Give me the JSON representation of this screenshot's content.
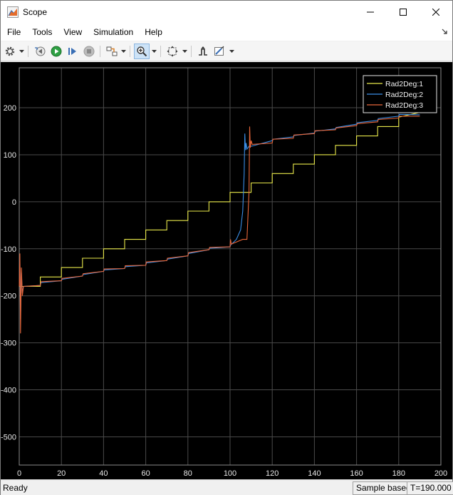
{
  "window": {
    "title": "Scope"
  },
  "menu": [
    "File",
    "Tools",
    "View",
    "Simulation",
    "Help"
  ],
  "toolbar": [
    {
      "name": "settings-gear-icon"
    },
    {
      "name": "step-back-icon"
    },
    {
      "name": "run-icon"
    },
    {
      "name": "step-forward-icon"
    },
    {
      "name": "stop-icon"
    },
    {
      "name": "highlight-block-icon"
    },
    {
      "name": "zoom-in-icon"
    },
    {
      "name": "zoom-to-fit-icon"
    },
    {
      "name": "triggers-icon"
    },
    {
      "name": "cursor-measure-icon"
    }
  ],
  "status": {
    "ready": "Ready",
    "mode": "Sample based",
    "time": "T=190.000"
  },
  "chart_data": {
    "type": "line",
    "xlim": [
      0,
      200
    ],
    "ylim": [
      -560,
      285
    ],
    "x_ticks": [
      0,
      20,
      40,
      60,
      80,
      100,
      120,
      140,
      160,
      180,
      200
    ],
    "y_ticks": [
      -500,
      -400,
      -300,
      -200,
      -100,
      0,
      100,
      200
    ],
    "x_tick_labels": [
      "0",
      "20",
      "40",
      "60",
      "80",
      "100",
      "120",
      "140",
      "160",
      "180",
      "200"
    ],
    "y_tick_labels": [
      "-500",
      "-400",
      "-300",
      "-200",
      "-100",
      "0",
      "100",
      "200"
    ],
    "grid": true,
    "legend_position": "top-right",
    "background": "#000000",
    "series": [
      {
        "name": "Rad2Deg:1",
        "color": "#e8e84a",
        "x": [
          0,
          10,
          10,
          20,
          20,
          30,
          30,
          40,
          40,
          50,
          50,
          60,
          60,
          70,
          70,
          80,
          80,
          90,
          90,
          100,
          100,
          110,
          110,
          120,
          120,
          130,
          130,
          140,
          140,
          150,
          150,
          160,
          160,
          170,
          170,
          180,
          180,
          190
        ],
        "y": [
          -180,
          -180,
          -160,
          -160,
          -140,
          -140,
          -120,
          -120,
          -100,
          -100,
          -80,
          -80,
          -60,
          -60,
          -40,
          -40,
          -20,
          -20,
          0,
          0,
          20,
          20,
          40,
          40,
          60,
          60,
          80,
          80,
          100,
          100,
          120,
          120,
          140,
          140,
          160,
          160,
          180,
          190
        ]
      },
      {
        "name": "Rad2Deg:2",
        "color": "#3a8ee6",
        "x": [
          0,
          0.3,
          0.6,
          1,
          1.5,
          2,
          10,
          10.3,
          20,
          20.3,
          30,
          30.3,
          40,
          40.3,
          50,
          50.3,
          60,
          60.3,
          70,
          70.3,
          80,
          80.3,
          90,
          90.3,
          100,
          100.3,
          103,
          105,
          106,
          106.7,
          107,
          107.3,
          107.6,
          108,
          109,
          110,
          120,
          120.3,
          130,
          130.3,
          140,
          140.3,
          150,
          150.3,
          160,
          160.3,
          170,
          170.3,
          180,
          180.3,
          190
        ],
        "y": [
          -180,
          -120,
          -250,
          -150,
          -195,
          -180,
          -178,
          -172,
          -168,
          -165,
          -158,
          -155,
          -148,
          -145,
          -142,
          -138,
          -135,
          -130,
          -125,
          -122,
          -115,
          -110,
          -102,
          -99,
          -96,
          -92,
          -80,
          -60,
          -20,
          60,
          145,
          110,
          125,
          112,
          118,
          118,
          130,
          133,
          138,
          141,
          146,
          150,
          155,
          158,
          165,
          168,
          173,
          177,
          182,
          186,
          185
        ]
      },
      {
        "name": "Rad2Deg:3",
        "color": "#e8663a",
        "x": [
          0,
          0.3,
          0.6,
          1,
          1.5,
          2,
          10,
          10.3,
          20,
          20.3,
          30,
          30.3,
          40,
          40.3,
          50,
          50.3,
          60,
          60.3,
          70,
          70.3,
          80,
          80.3,
          90,
          90.3,
          100,
          100.2,
          100.6,
          106,
          108,
          109,
          109.3,
          109.6,
          110,
          110.5,
          120,
          120.3,
          130,
          130.3,
          140,
          140.3,
          150,
          150.3,
          160,
          160.3,
          170,
          170.3,
          180,
          180.3,
          190
        ],
        "y": [
          -180,
          -110,
          -280,
          -140,
          -200,
          -180,
          -178,
          -170,
          -168,
          -163,
          -158,
          -153,
          -148,
          -143,
          -142,
          -136,
          -135,
          -128,
          -125,
          -120,
          -115,
          -108,
          -102,
          -97,
          -96,
          -80,
          -90,
          -80,
          -80,
          20,
          160,
          115,
          130,
          122,
          125,
          133,
          135,
          142,
          145,
          151,
          153,
          157,
          162,
          166,
          170,
          175,
          178,
          182,
          182
        ]
      }
    ]
  }
}
